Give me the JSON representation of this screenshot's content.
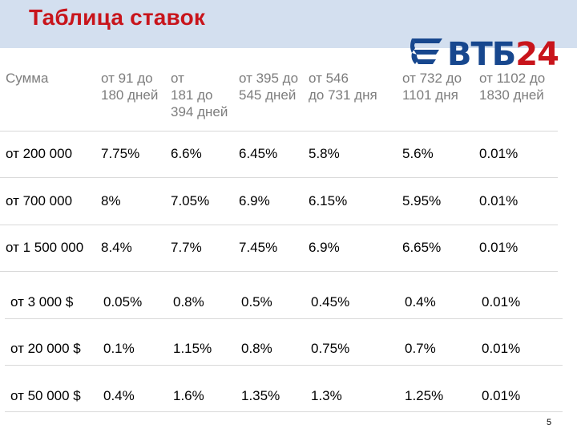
{
  "slide": {
    "title": "Таблица ставок",
    "page_number": "5"
  },
  "logo": {
    "name": "ВТБ24",
    "part1": "ВТБ",
    "part2": "24",
    "colors": {
      "blue": "#17478e",
      "red": "#c8141b"
    }
  },
  "colors": {
    "title": "#c8141b",
    "title_band": "#d3dfef",
    "header_text": "#7d7d7d"
  },
  "table": {
    "headers": [
      {
        "lines": [
          "Сумма"
        ]
      },
      {
        "lines": [
          "от 91 до",
          "180 дней"
        ]
      },
      {
        "lines": [
          "от",
          "181 до",
          "394 дней"
        ]
      },
      {
        "lines": [
          "от 395 до",
          "545 дней"
        ]
      },
      {
        "lines": [
          "от 546",
          "до 731 дня"
        ]
      },
      {
        "lines": [
          "от 732 до",
          "1101 дня"
        ]
      },
      {
        "lines": [
          "от 1102 до",
          "1830 дней"
        ]
      }
    ],
    "rows": [
      [
        "от 200 000",
        "7.75%",
        "6.6%",
        "6.45%",
        "5.8%",
        "5.6%",
        "0.01%"
      ],
      [
        "от 700 000",
        "8%",
        "7.05%",
        "6.9%",
        "6.15%",
        "5.95%",
        "0.01%"
      ],
      [
        "от 1 500 000",
        "8.4%",
        "7.7%",
        "7.45%",
        "6.9%",
        "6.65%",
        "0.01%"
      ],
      [
        "от 3 000 $",
        "0.05%",
        "0.8%",
        "0.5%",
        "0.45%",
        "0.4%",
        "0.01%"
      ],
      [
        "от 20 000 $",
        "0.1%",
        "1.15%",
        "0.8%",
        "0.75%",
        "0.7%",
        "0.01%"
      ],
      [
        "от 50 000 $",
        "0.4%",
        "1.6%",
        "1.35%",
        "1.3%",
        "1.25%",
        "0.01%"
      ]
    ]
  }
}
